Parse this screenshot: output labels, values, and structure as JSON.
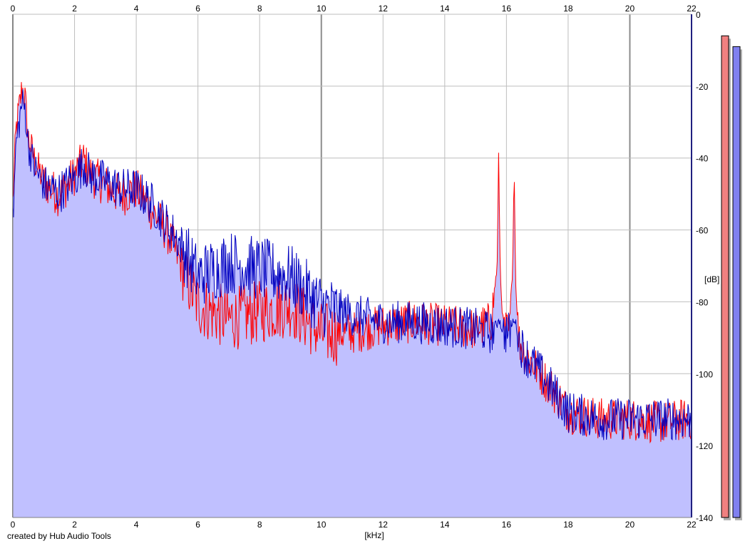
{
  "credit": "created by Hub Audio Tools",
  "chart_data": {
    "type": "area",
    "xlabel": "[kHz]",
    "ylabel": "[dB]",
    "xlim": [
      0,
      22
    ],
    "ylim": [
      -140,
      0
    ],
    "x_ticks": [
      0,
      2,
      4,
      6,
      8,
      10,
      12,
      14,
      16,
      18,
      20,
      22
    ],
    "x_tick_labels": [
      "0",
      "2",
      "4",
      "6",
      "8",
      "10",
      "12",
      "14",
      "16",
      "18",
      "20",
      "22"
    ],
    "y_ticks": [
      0,
      -20,
      -40,
      -60,
      -80,
      -100,
      -120,
      -140
    ],
    "y_tick_labels": [
      "0",
      "-20",
      "-40",
      "-60",
      "-80",
      "-100",
      "-120",
      "-140"
    ],
    "grid": true,
    "colors": {
      "red_channel": "#ff0000",
      "blue_channel": "#0000c0",
      "fill": "#c0c0ff",
      "grid": "#bebebe",
      "grid_major": "#8c8c8c",
      "meter_red": "#f08080",
      "meter_blue": "#8080f0"
    },
    "series": [
      {
        "color": "red",
        "x": [
          0.0,
          0.1,
          0.2,
          0.3,
          0.4,
          0.5,
          0.7,
          1.0,
          1.5,
          2.0,
          2.3,
          2.5,
          3.0,
          3.5,
          4.0,
          4.5,
          5.0,
          5.5,
          6.0,
          7.0,
          8.0,
          9.0,
          10.0,
          11.0,
          12.0,
          13.0,
          14.0,
          15.0,
          15.5,
          15.7,
          15.75,
          15.8,
          15.9,
          16.1,
          16.2,
          16.25,
          16.3,
          16.4,
          16.6,
          17.0,
          17.5,
          18.0,
          19.0,
          20.0,
          21.0,
          22.0
        ],
        "y": [
          -52,
          -32,
          -26,
          -20,
          -23,
          -34,
          -40,
          -46,
          -50,
          -44,
          -40,
          -44,
          -47,
          -50,
          -48,
          -54,
          -60,
          -70,
          -80,
          -84,
          -82,
          -80,
          -88,
          -88,
          -86,
          -85,
          -86,
          -87,
          -85,
          -70,
          -38,
          -72,
          -87,
          -88,
          -70,
          -42,
          -75,
          -90,
          -94,
          -98,
          -104,
          -110,
          -112,
          -112,
          -113,
          -112
        ]
      },
      {
        "color": "blue",
        "x": [
          0.0,
          0.1,
          0.2,
          0.3,
          0.4,
          0.5,
          0.7,
          1.0,
          1.5,
          2.0,
          2.3,
          2.5,
          3.0,
          3.5,
          4.0,
          4.5,
          5.0,
          5.5,
          6.0,
          7.0,
          8.0,
          9.0,
          10.0,
          11.0,
          12.0,
          13.0,
          14.0,
          15.0,
          15.5,
          15.7,
          15.75,
          15.8,
          15.9,
          16.1,
          16.2,
          16.25,
          16.3,
          16.4,
          16.6,
          17.0,
          17.5,
          18.0,
          19.0,
          20.0,
          21.0,
          22.0
        ],
        "y": [
          -58,
          -36,
          -30,
          -24,
          -26,
          -36,
          -42,
          -47,
          -49,
          -45,
          -41,
          -44,
          -46,
          -48,
          -48,
          -52,
          -58,
          -64,
          -72,
          -68,
          -70,
          -72,
          -80,
          -83,
          -85,
          -85,
          -86,
          -87,
          -88,
          -86,
          -84,
          -86,
          -88,
          -88,
          -86,
          -84,
          -86,
          -90,
          -94,
          -98,
          -104,
          -110,
          -112,
          -112,
          -112,
          -112
        ]
      }
    ],
    "meters": [
      {
        "channel": "red",
        "value_db": -6
      },
      {
        "channel": "blue",
        "value_db": -9
      }
    ]
  }
}
